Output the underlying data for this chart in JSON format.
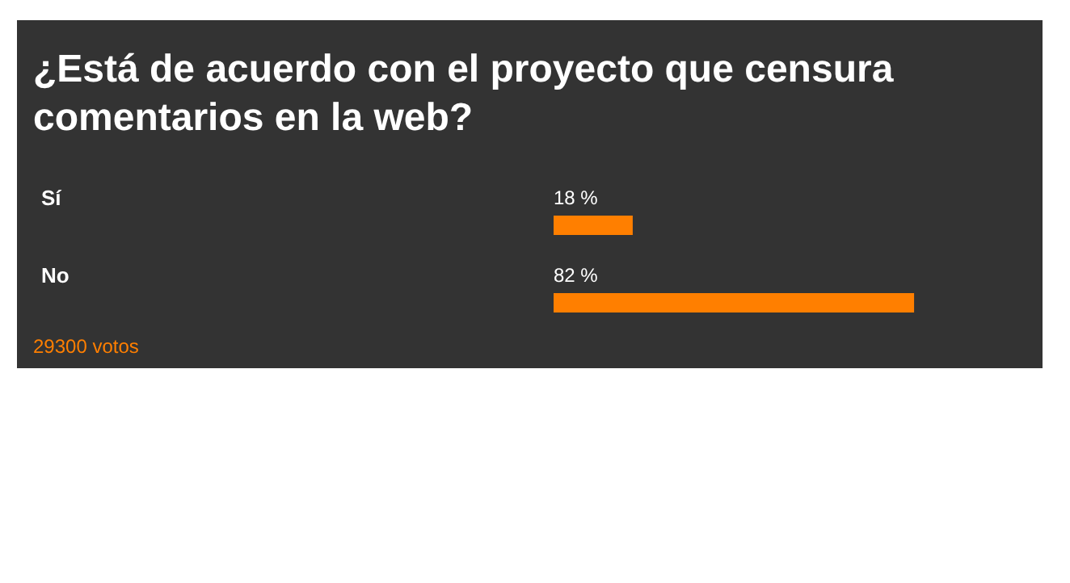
{
  "chart_data": {
    "type": "bar",
    "orientation": "horizontal",
    "title": "¿Está de acuerdo con el proyecto que censura comentarios en la web?",
    "categories": [
      "Sí",
      "No"
    ],
    "values": [
      18,
      82
    ],
    "color": "#ff7f00",
    "value_labels": [
      "18 %",
      "82 %"
    ],
    "annotations": [
      "29300 votos"
    ]
  }
}
